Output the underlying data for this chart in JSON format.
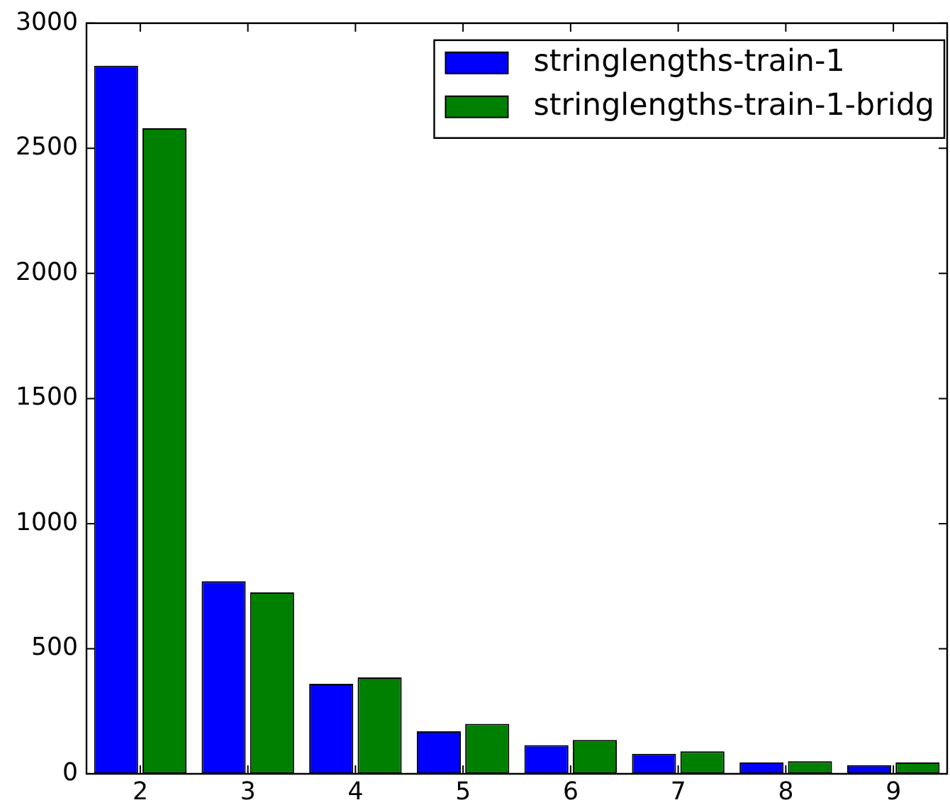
{
  "chart_data": {
    "type": "bar",
    "categories": [
      "2",
      "3",
      "4",
      "5",
      "6",
      "7",
      "8",
      "9"
    ],
    "series": [
      {
        "name": "stringlengths-train-1",
        "color": "#0000ff",
        "values": [
          2830,
          770,
          360,
          170,
          115,
          80,
          45,
          35
        ]
      },
      {
        "name": "stringlengths-train-1-bridg",
        "color": "#008000",
        "values": [
          2580,
          725,
          385,
          200,
          135,
          90,
          50,
          45
        ]
      }
    ],
    "ylim": [
      0,
      3000
    ],
    "yticks": [
      0,
      500,
      1000,
      1500,
      2000,
      2500,
      3000
    ],
    "legend": "top right"
  }
}
